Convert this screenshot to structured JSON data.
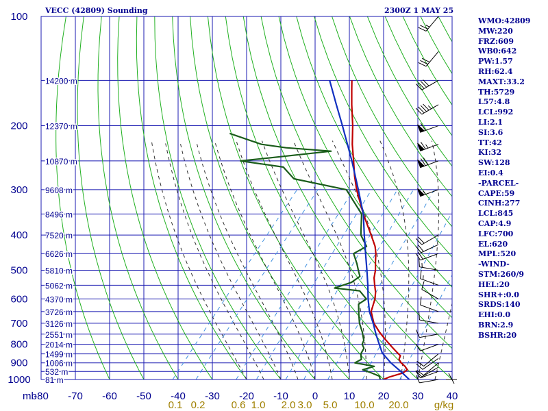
{
  "header": {
    "station": "VECC (42809) Sounding",
    "valid_time": "2300Z  1 MAY 25"
  },
  "indices": [
    "WMO:42809",
    "MW:220",
    "FRZ:609",
    "WB0:642",
    "PW:1.57",
    "RH:62.4",
    "MAXT:33.2",
    "TH:5729",
    "L57:4.8",
    "LCL:992",
    "LI:2.1",
    "SI:3.6",
    "TT:42",
    "KI:32",
    "SW:128",
    "EI:0.4",
    "-PARCEL-",
    "CAPE:59",
    "CINH:277",
    "LCL:845",
    "CAP:4.9",
    "LFC:700",
    "EL:620",
    "MPL:520",
    "-WIND-",
    "STM:260/9",
    "HEL:20",
    "SHR+:0.0",
    "SRDS:140",
    "EHI:0.0",
    "BRN:2.9",
    "BSHR:20"
  ],
  "colors": {
    "grid": "#1818b0",
    "isotherm": "#1818b0",
    "dry_adiabat": "#20b020",
    "moist_adiabat": "#303030",
    "mixing_ratio": "#4090e0",
    "temperature": "#c00000",
    "dewpoint": "#1a5c1a",
    "parcel": "#1030c0",
    "text": "#000090",
    "mixing_label": "#a08000",
    "wind": "#000000"
  },
  "chart_data": {
    "type": "skew-t",
    "yaxis": {
      "unit_label": "mb",
      "pressure_levels": [
        100,
        200,
        300,
        400,
        500,
        600,
        700,
        800,
        900,
        1000
      ],
      "height_labels": [
        {
          "p": 150,
          "label": "14200 m"
        },
        {
          "p": 200,
          "label": "12370 m"
        },
        {
          "p": 250,
          "label": "10870 m"
        },
        {
          "p": 300,
          "label": "9608 m"
        },
        {
          "p": 350,
          "label": "8496 m"
        },
        {
          "p": 400,
          "label": "7520 m"
        },
        {
          "p": 450,
          "label": "6626 m"
        },
        {
          "p": 500,
          "label": "5810 m"
        },
        {
          "p": 550,
          "label": "5062 m"
        },
        {
          "p": 600,
          "label": "4370 m"
        },
        {
          "p": 650,
          "label": "3726 m"
        },
        {
          "p": 700,
          "label": "3126 m"
        },
        {
          "p": 750,
          "label": "2551 m"
        },
        {
          "p": 800,
          "label": "2014 m"
        },
        {
          "p": 850,
          "label": "1499 m"
        },
        {
          "p": 900,
          "label": "1006 m"
        },
        {
          "p": 950,
          "label": "532 m"
        },
        {
          "p": 1000,
          "label": "81 m"
        }
      ]
    },
    "xaxis": {
      "temps": [
        -80,
        -70,
        -60,
        -50,
        -40,
        -30,
        -20,
        -10,
        0,
        10,
        20,
        30,
        40
      ],
      "tick_labels": [
        "-80",
        "-70",
        "-60",
        "-50",
        "-40",
        "-30",
        "-20",
        "-10",
        "0",
        "10",
        "20",
        "30",
        "40"
      ]
    },
    "mixing_ratio_labels": [
      "0.1",
      "0.2",
      "0.6",
      "1.0",
      "2.0",
      "3.0",
      "5.0",
      "10.0",
      "20.0",
      "g/kg"
    ],
    "temperature": [
      {
        "p": 1000,
        "t": 20.0
      },
      {
        "p": 985,
        "t": 21.0
      },
      {
        "p": 960,
        "t": 24.0
      },
      {
        "p": 940,
        "t": 24.5
      },
      {
        "p": 920,
        "t": 23.0
      },
      {
        "p": 900,
        "t": 21.0
      },
      {
        "p": 880,
        "t": 19.5
      },
      {
        "p": 860,
        "t": 19.0
      },
      {
        "p": 840,
        "t": 17.0
      },
      {
        "p": 820,
        "t": 15.0
      },
      {
        "p": 800,
        "t": 13.0
      },
      {
        "p": 780,
        "t": 11.0
      },
      {
        "p": 760,
        "t": 9.0
      },
      {
        "p": 740,
        "t": 7.0
      },
      {
        "p": 700,
        "t": 3.2
      },
      {
        "p": 650,
        "t": -0.5
      },
      {
        "p": 600,
        "t": -2.5
      },
      {
        "p": 575,
        "t": -4.0
      },
      {
        "p": 550,
        "t": -6.0
      },
      {
        "p": 525,
        "t": -8.0
      },
      {
        "p": 500,
        "t": -9.5
      },
      {
        "p": 475,
        "t": -11.5
      },
      {
        "p": 450,
        "t": -13.5
      },
      {
        "p": 430,
        "t": -15.5
      },
      {
        "p": 400,
        "t": -19.5
      },
      {
        "p": 350,
        "t": -27.0
      },
      {
        "p": 300,
        "t": -35.0
      },
      {
        "p": 275,
        "t": -39.0
      },
      {
        "p": 250,
        "t": -43.0
      },
      {
        "p": 225,
        "t": -47.5
      },
      {
        "p": 200,
        "t": -52.0
      },
      {
        "p": 175,
        "t": -57.5
      },
      {
        "p": 160,
        "t": -61.0
      },
      {
        "p": 150,
        "t": -63.5
      }
    ],
    "dewpoint": [
      {
        "p": 1000,
        "t": 19.0
      },
      {
        "p": 980,
        "t": 18.0
      },
      {
        "p": 960,
        "t": 15.0
      },
      {
        "p": 940,
        "t": 11.5
      },
      {
        "p": 920,
        "t": 14.0
      },
      {
        "p": 900,
        "t": 7.5
      },
      {
        "p": 880,
        "t": 8.5
      },
      {
        "p": 850,
        "t": 7.0
      },
      {
        "p": 820,
        "t": 6.5
      },
      {
        "p": 800,
        "t": 5.0
      },
      {
        "p": 780,
        "t": 4.5
      },
      {
        "p": 740,
        "t": 2.0
      },
      {
        "p": 700,
        "t": -1.0
      },
      {
        "p": 660,
        "t": -3.5
      },
      {
        "p": 620,
        "t": -6.0
      },
      {
        "p": 600,
        "t": -5.0
      },
      {
        "p": 570,
        "t": -9.0
      },
      {
        "p": 560,
        "t": -17.0
      },
      {
        "p": 540,
        "t": -13.5
      },
      {
        "p": 520,
        "t": -12.5
      },
      {
        "p": 500,
        "t": -14.5
      },
      {
        "p": 480,
        "t": -16.5
      },
      {
        "p": 450,
        "t": -20.0
      },
      {
        "p": 430,
        "t": -18.0
      },
      {
        "p": 400,
        "t": -22.5
      },
      {
        "p": 350,
        "t": -27.5
      },
      {
        "p": 300,
        "t": -38.0
      },
      {
        "p": 280,
        "t": -56.0
      },
      {
        "p": 260,
        "t": -62.0
      },
      {
        "p": 250,
        "t": -76.0
      },
      {
        "p": 245,
        "t": -68.0
      },
      {
        "p": 235,
        "t": -52.0
      },
      {
        "p": 230,
        "t": -66.0
      },
      {
        "p": 225,
        "t": -74.0
      },
      {
        "p": 210,
        "t": -86.0
      }
    ],
    "parcel": [
      {
        "p": 1000,
        "t": 27.5
      },
      {
        "p": 950,
        "t": 23.0
      },
      {
        "p": 900,
        "t": 18.0
      },
      {
        "p": 845,
        "t": 13.0
      },
      {
        "p": 800,
        "t": 10.0
      },
      {
        "p": 750,
        "t": 6.5
      },
      {
        "p": 700,
        "t": 3.0
      },
      {
        "p": 650,
        "t": -1.0
      },
      {
        "p": 600,
        "t": -4.5
      },
      {
        "p": 550,
        "t": -8.0
      },
      {
        "p": 500,
        "t": -12.0
      },
      {
        "p": 450,
        "t": -16.5
      },
      {
        "p": 400,
        "t": -21.5
      },
      {
        "p": 350,
        "t": -27.0
      },
      {
        "p": 300,
        "t": -34.5
      },
      {
        "p": 250,
        "t": -43.5
      },
      {
        "p": 200,
        "t": -55.0
      },
      {
        "p": 175,
        "t": -62.0
      },
      {
        "p": 150,
        "t": -70.0
      }
    ],
    "wind_barbs": [
      {
        "p": 1000,
        "dir": 260,
        "spd": 10
      },
      {
        "p": 950,
        "dir": 250,
        "spd": 10
      },
      {
        "p": 925,
        "dir": 240,
        "spd": 10
      },
      {
        "p": 900,
        "dir": 230,
        "spd": 10
      },
      {
        "p": 875,
        "dir": 235,
        "spd": 10
      },
      {
        "p": 850,
        "dir": 230,
        "spd": 10
      },
      {
        "p": 800,
        "dir": 250,
        "spd": 10
      },
      {
        "p": 750,
        "dir": 260,
        "spd": 10
      },
      {
        "p": 700,
        "dir": 280,
        "spd": 10
      },
      {
        "p": 650,
        "dir": 290,
        "spd": 10
      },
      {
        "p": 600,
        "dir": 300,
        "spd": 10
      },
      {
        "p": 550,
        "dir": 290,
        "spd": 15
      },
      {
        "p": 500,
        "dir": 280,
        "spd": 15
      },
      {
        "p": 450,
        "dir": 250,
        "spd": 20
      },
      {
        "p": 425,
        "dir": 245,
        "spd": 20
      },
      {
        "p": 400,
        "dir": 240,
        "spd": 20
      },
      {
        "p": 300,
        "dir": 250,
        "spd": 55
      },
      {
        "p": 250,
        "dir": 250,
        "spd": 70
      },
      {
        "p": 225,
        "dir": 250,
        "spd": 65
      },
      {
        "p": 200,
        "dir": 250,
        "spd": 60
      },
      {
        "p": 175,
        "dir": 240,
        "spd": 45
      },
      {
        "p": 150,
        "dir": 240,
        "spd": 40
      },
      {
        "p": 125,
        "dir": 220,
        "spd": 30
      },
      {
        "p": 100,
        "dir": 220,
        "spd": 25
      }
    ]
  }
}
